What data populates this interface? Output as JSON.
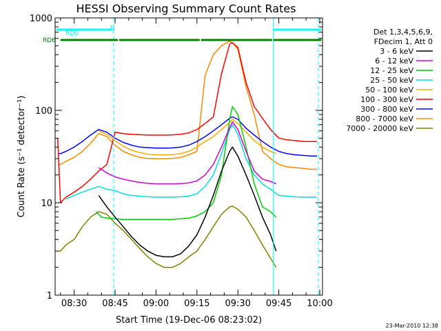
{
  "chart_data": {
    "type": "line",
    "title": "HESSI Observing Summary Count Rates",
    "xlabel": "Start Time (19-Dec-06 08:23:02)",
    "ylabel": "Count Rate (s⁻¹ detector⁻¹)",
    "y_scale": "log",
    "ylim": [
      1,
      1000
    ],
    "xlim": [
      "08:23:02",
      "10:01:00"
    ],
    "x_ticks": [
      "08:30",
      "08:45",
      "09:00",
      "09:15",
      "09:30",
      "09:45",
      "10:00"
    ],
    "y_ticks": [
      "1",
      "10",
      "100",
      "1000"
    ],
    "legend_header": [
      "Det 1,3,4,5,6,9,",
      "FDecim 1, Att 0"
    ],
    "legend_position": "top-right",
    "footer_date": "23-Mar-2010 12:38",
    "series": [
      {
        "name": "3 - 6 keV",
        "color": "#000000",
        "x": [
          "08:25",
          "08:27",
          "08:30",
          "08:33",
          "08:36",
          "08:39",
          "08:42",
          "08:45",
          "08:48",
          "08:51",
          "08:54",
          "08:57",
          "09:00",
          "09:03",
          "09:06",
          "09:09",
          "09:12",
          "09:15",
          "09:18",
          "09:21",
          "09:24",
          "09:27",
          "09:28",
          "09:30",
          "09:33",
          "09:36",
          "09:39",
          "09:42",
          "09:44"
        ],
        "y": [
          null,
          null,
          null,
          null,
          null,
          12,
          9,
          7,
          5.5,
          4.3,
          3.5,
          3,
          2.7,
          2.6,
          2.6,
          2.8,
          3.4,
          4.5,
          7,
          12,
          22,
          36,
          40,
          32,
          20,
          12,
          7,
          4.5,
          3
        ]
      },
      {
        "name": "6 - 12 keV",
        "color": "#cc00cc",
        "x": [
          "08:39",
          "08:42",
          "08:45",
          "08:48",
          "08:51",
          "08:54",
          "08:57",
          "09:00",
          "09:03",
          "09:06",
          "09:09",
          "09:12",
          "09:15",
          "09:18",
          "09:21",
          "09:24",
          "09:27",
          "09:28",
          "09:30",
          "09:33",
          "09:36",
          "09:39",
          "09:42",
          "09:44"
        ],
        "y": [
          24,
          21,
          19,
          18,
          17.2,
          16.6,
          16.2,
          16,
          16,
          16,
          16.1,
          16.4,
          17.2,
          20,
          26,
          40,
          65,
          75,
          62,
          36,
          22,
          18,
          17,
          16
        ]
      },
      {
        "name": "12 - 25 keV",
        "color": "#00cc00",
        "x": [
          "08:38",
          "08:40",
          "08:42",
          "08:45",
          "08:48",
          "08:51",
          "08:54",
          "08:57",
          "09:00",
          "09:03",
          "09:06",
          "09:09",
          "09:12",
          "09:15",
          "09:18",
          "09:21",
          "09:24",
          "09:27",
          "09:28",
          "09:30",
          "09:33",
          "09:36",
          "09:39",
          "09:42",
          "09:44"
        ],
        "y": [
          8,
          7,
          6.8,
          6.7,
          6.6,
          6.6,
          6.6,
          6.6,
          6.6,
          6.6,
          6.6,
          6.7,
          6.8,
          7.2,
          8,
          10,
          20,
          80,
          110,
          90,
          40,
          16,
          9,
          8,
          7
        ]
      },
      {
        "name": "25 - 50 keV",
        "color": "#00dddd",
        "x": [
          "08:27",
          "08:30",
          "08:33",
          "08:36",
          "08:39",
          "08:42",
          "08:45",
          "08:48",
          "08:51",
          "08:54",
          "08:57",
          "09:00",
          "09:03",
          "09:06",
          "09:09",
          "09:12",
          "09:15",
          "09:18",
          "09:21",
          "09:24",
          "09:27",
          "09:28",
          "09:30",
          "09:33",
          "09:36",
          "09:39",
          "09:42",
          "09:45",
          "09:48",
          "09:51",
          "09:54",
          "09:57",
          "09:59"
        ],
        "y": [
          11,
          12,
          13,
          14,
          15,
          14,
          13.5,
          12.5,
          12,
          11.8,
          11.6,
          11.5,
          11.5,
          11.5,
          11.6,
          11.8,
          12.5,
          15,
          20,
          34,
          62,
          70,
          55,
          30,
          20,
          16,
          14,
          12,
          11.8,
          11.6,
          11.5,
          11.5,
          11.5
        ]
      },
      {
        "name": "50 - 100 keV",
        "color": "#ffaa00",
        "x": [
          "08:25",
          "08:27",
          "08:30",
          "08:33",
          "08:36",
          "08:39",
          "08:42",
          "08:45",
          "08:48",
          "08:51",
          "08:54",
          "08:57",
          "09:00",
          "09:03",
          "09:06",
          "09:09",
          "09:12",
          "09:15",
          "09:18",
          "09:21",
          "09:24",
          "09:27",
          "09:28",
          "09:30",
          "09:33",
          "09:36",
          "09:39",
          "09:42",
          "09:44"
        ],
        "y": [
          null,
          null,
          null,
          null,
          null,
          60,
          55,
          47,
          41,
          37,
          35,
          33.5,
          33,
          33,
          33.2,
          34,
          36,
          40,
          46,
          52,
          62,
          74,
          80,
          72,
          58,
          47,
          40,
          36,
          34
        ]
      },
      {
        "name": "100 - 300 keV",
        "color": "#ff0000",
        "x": [
          "08:24",
          "08:25",
          "08:27",
          "08:30",
          "08:33",
          "08:36",
          "08:39",
          "08:42",
          "08:45",
          "08:48",
          "08:51",
          "08:54",
          "08:57",
          "09:00",
          "09:03",
          "09:06",
          "09:09",
          "09:12",
          "09:15",
          "09:18",
          "09:21",
          "09:24",
          "09:27",
          "09:28",
          "09:30",
          "09:33",
          "09:36",
          "09:39",
          "09:42",
          "09:45",
          "09:48",
          "09:51",
          "09:54",
          "09:57",
          "09:59"
        ],
        "y": [
          50,
          10,
          11.5,
          13,
          15,
          18,
          22,
          26,
          58,
          56,
          55,
          54.5,
          54,
          54,
          54,
          54.2,
          55,
          57,
          62,
          72,
          85,
          250,
          520,
          540,
          480,
          200,
          110,
          82,
          62,
          50,
          48,
          47,
          46,
          46,
          46
        ]
      },
      {
        "name": "300 - 800 keV",
        "color": "#0000ff",
        "x": [
          "08:24",
          "08:25",
          "08:27",
          "08:30",
          "08:33",
          "08:36",
          "08:39",
          "08:42",
          "08:45",
          "08:48",
          "08:51",
          "08:54",
          "08:57",
          "09:00",
          "09:03",
          "09:06",
          "09:09",
          "09:12",
          "09:15",
          "09:18",
          "09:21",
          "09:24",
          "09:27",
          "09:28",
          "09:30",
          "09:33",
          "09:36",
          "09:39",
          "09:42",
          "09:45",
          "09:48",
          "09:51",
          "09:54",
          "09:57",
          "09:59"
        ],
        "y": [
          34,
          34,
          36,
          40,
          46,
          54,
          62,
          58,
          50,
          45,
          42,
          40,
          39.5,
          39,
          39,
          39.2,
          40,
          42,
          46,
          52,
          60,
          70,
          82,
          85,
          80,
          64,
          54,
          46,
          40,
          36,
          34,
          33,
          32.5,
          32,
          32
        ]
      },
      {
        "name": "800 - 7000 keV",
        "color": "#ff8800",
        "x": [
          "08:24",
          "08:25",
          "08:27",
          "08:30",
          "08:33",
          "08:36",
          "08:39",
          "08:42",
          "08:45",
          "08:48",
          "08:51",
          "08:54",
          "08:57",
          "09:00",
          "09:03",
          "09:06",
          "09:09",
          "09:12",
          "09:15",
          "09:18",
          "09:21",
          "09:24",
          "09:27",
          "09:28",
          "09:30",
          "09:33",
          "09:36",
          "09:39",
          "09:42",
          "09:45",
          "09:48",
          "09:51",
          "09:54",
          "09:57",
          "09:59"
        ],
        "y": [
          26,
          26,
          28,
          31,
          36,
          44,
          56,
          52,
          42,
          36,
          33,
          31,
          30.2,
          30,
          30,
          30.2,
          31,
          33,
          36,
          240,
          400,
          500,
          560,
          540,
          460,
          180,
          90,
          36,
          30,
          26,
          24.5,
          24,
          23.5,
          23,
          23
        ]
      },
      {
        "name": "7000 - 20000 keV",
        "color": "#808000",
        "x": [
          "08:24",
          "08:25",
          "08:27",
          "08:30",
          "08:33",
          "08:36",
          "08:39",
          "08:42",
          "08:45",
          "08:48",
          "08:51",
          "08:54",
          "08:57",
          "09:00",
          "09:03",
          "09:06",
          "09:09",
          "09:12",
          "09:15",
          "09:18",
          "09:21",
          "09:24",
          "09:27",
          "09:28",
          "09:30",
          "09:33",
          "09:36",
          "09:39",
          "09:42",
          "09:44"
        ],
        "y": [
          3,
          3,
          3.5,
          4,
          5.5,
          7,
          8,
          7.5,
          6,
          5,
          4,
          3.2,
          2.6,
          2.2,
          2,
          2,
          2.2,
          2.6,
          3,
          4,
          5.5,
          7.5,
          9,
          9.2,
          8.5,
          7,
          5,
          3.5,
          2.5,
          2
        ]
      }
    ],
    "attenuator_bars": [
      {
        "label": "RD0",
        "color": "#00ffff",
        "segments": [
          [
            "08:23:30",
            "08:44:00"
          ],
          [
            "09:43:00",
            "10:00:30"
          ]
        ]
      },
      {
        "label": "RD6",
        "color": "#008000",
        "segments": [
          [
            "08:25:00",
            "08:46:00"
          ],
          [
            "08:46:30",
            "09:16:00"
          ],
          [
            "09:16:30",
            "09:42:30"
          ],
          [
            "09:43:00",
            "10:00:30"
          ]
        ]
      }
    ],
    "attenuator_tag": "N",
    "vertical_lines": [
      {
        "x": "08:23:02",
        "color": "#00ffff",
        "style": "solid"
      },
      {
        "x": "08:44:30",
        "color": "#00ffff",
        "style": "dashed"
      },
      {
        "x": "09:43:00",
        "color": "#00ffff",
        "style": "solid"
      },
      {
        "x": "09:59:30",
        "color": "#00ffff",
        "style": "dashed"
      }
    ]
  }
}
